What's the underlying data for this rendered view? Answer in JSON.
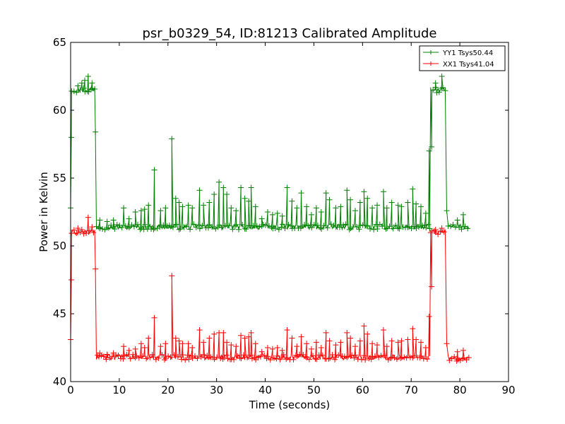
{
  "chart_data": {
    "type": "line",
    "title": "psr_b0329_54, ID:81213 Calibrated Amplitude",
    "xlabel": "Time (seconds)",
    "ylabel": "Power in Kelvin",
    "xlim": [
      0,
      90
    ],
    "ylim": [
      40,
      65
    ],
    "xticks": [
      "0",
      "10",
      "20",
      "30",
      "40",
      "50",
      "60",
      "70",
      "80",
      "90"
    ],
    "yticks": [
      "40",
      "45",
      "50",
      "55",
      "60",
      "65"
    ],
    "grid": false,
    "legend_position": "top-right",
    "series": [
      {
        "name": "YY1 Tsys50.44",
        "color": "#008000",
        "marker": "plus",
        "baseline_segments": [
          {
            "x_start": 0.2,
            "x_end": 5.0,
            "level": 61.5
          },
          {
            "x_start": 5.3,
            "x_end": 73.8,
            "level": 51.4
          },
          {
            "x_start": 74.0,
            "x_end": 77.2,
            "level": 61.5
          },
          {
            "x_start": 77.6,
            "x_end": 82.0,
            "level": 51.4
          }
        ],
        "transitions": [
          {
            "x": 0.0,
            "y": 52.8
          },
          {
            "x": 0.15,
            "y": 58.0
          },
          {
            "x": 5.1,
            "y": 58.4
          },
          {
            "x": 73.7,
            "y": 57.0
          },
          {
            "x": 74.2,
            "y": 57.3
          },
          {
            "x": 77.3,
            "y": 52.6
          }
        ],
        "spikes": [
          {
            "x": 1.5,
            "y": 61.8
          },
          {
            "x": 2.3,
            "y": 62.0
          },
          {
            "x": 2.9,
            "y": 62.2
          },
          {
            "x": 3.6,
            "y": 62.5
          },
          {
            "x": 4.4,
            "y": 62.0
          },
          {
            "x": 6.0,
            "y": 51.9
          },
          {
            "x": 7.5,
            "y": 51.8
          },
          {
            "x": 8.8,
            "y": 51.9
          },
          {
            "x": 10.9,
            "y": 52.8
          },
          {
            "x": 12.0,
            "y": 52.0
          },
          {
            "x": 13.3,
            "y": 52.5
          },
          {
            "x": 14.5,
            "y": 52.6
          },
          {
            "x": 15.2,
            "y": 52.7
          },
          {
            "x": 16.0,
            "y": 53.0
          },
          {
            "x": 17.2,
            "y": 55.6
          },
          {
            "x": 18.5,
            "y": 52.6
          },
          {
            "x": 19.5,
            "y": 52.8
          },
          {
            "x": 20.8,
            "y": 57.9
          },
          {
            "x": 21.6,
            "y": 53.5
          },
          {
            "x": 22.3,
            "y": 53.2
          },
          {
            "x": 23.0,
            "y": 52.9
          },
          {
            "x": 24.2,
            "y": 53.0
          },
          {
            "x": 25.0,
            "y": 52.8
          },
          {
            "x": 26.5,
            "y": 54.1
          },
          {
            "x": 27.3,
            "y": 53.0
          },
          {
            "x": 28.5,
            "y": 53.2
          },
          {
            "x": 29.5,
            "y": 53.8
          },
          {
            "x": 30.5,
            "y": 54.7
          },
          {
            "x": 31.4,
            "y": 54.3
          },
          {
            "x": 32.1,
            "y": 53.8
          },
          {
            "x": 33.0,
            "y": 52.8
          },
          {
            "x": 34.0,
            "y": 52.6
          },
          {
            "x": 35.0,
            "y": 54.3
          },
          {
            "x": 35.8,
            "y": 53.5
          },
          {
            "x": 36.6,
            "y": 53.3
          },
          {
            "x": 37.1,
            "y": 54.3
          },
          {
            "x": 38.0,
            "y": 52.9
          },
          {
            "x": 39.3,
            "y": 52.0
          },
          {
            "x": 40.5,
            "y": 52.5
          },
          {
            "x": 41.5,
            "y": 52.3
          },
          {
            "x": 42.5,
            "y": 52.4
          },
          {
            "x": 43.5,
            "y": 52.2
          },
          {
            "x": 44.5,
            "y": 54.3
          },
          {
            "x": 45.5,
            "y": 53.3
          },
          {
            "x": 46.5,
            "y": 52.8
          },
          {
            "x": 47.4,
            "y": 53.9
          },
          {
            "x": 48.5,
            "y": 52.9
          },
          {
            "x": 49.5,
            "y": 52.3
          },
          {
            "x": 50.5,
            "y": 52.8
          },
          {
            "x": 51.5,
            "y": 52.5
          },
          {
            "x": 52.5,
            "y": 53.9
          },
          {
            "x": 53.2,
            "y": 53.4
          },
          {
            "x": 54.5,
            "y": 52.8
          },
          {
            "x": 55.5,
            "y": 52.9
          },
          {
            "x": 56.8,
            "y": 54.1
          },
          {
            "x": 57.5,
            "y": 53.4
          },
          {
            "x": 58.5,
            "y": 52.6
          },
          {
            "x": 59.5,
            "y": 53.2
          },
          {
            "x": 60.3,
            "y": 54.0
          },
          {
            "x": 61.0,
            "y": 53.5
          },
          {
            "x": 62.0,
            "y": 52.8
          },
          {
            "x": 63.0,
            "y": 53.0
          },
          {
            "x": 64.3,
            "y": 54.0
          },
          {
            "x": 65.0,
            "y": 52.8
          },
          {
            "x": 66.0,
            "y": 53.2
          },
          {
            "x": 67.3,
            "y": 53.0
          },
          {
            "x": 68.0,
            "y": 52.9
          },
          {
            "x": 69.3,
            "y": 53.2
          },
          {
            "x": 70.3,
            "y": 54.2
          },
          {
            "x": 71.0,
            "y": 53.1
          },
          {
            "x": 72.0,
            "y": 52.9
          },
          {
            "x": 73.0,
            "y": 52.4
          },
          {
            "x": 75.0,
            "y": 62.0
          },
          {
            "x": 76.3,
            "y": 62.5
          },
          {
            "x": 79.5,
            "y": 51.9
          },
          {
            "x": 80.7,
            "y": 52.3
          }
        ]
      },
      {
        "name": "XX1 Tsys41.04",
        "color": "#ff0000",
        "marker": "plus",
        "baseline_segments": [
          {
            "x_start": 0.2,
            "x_end": 5.0,
            "level": 51.0
          },
          {
            "x_start": 5.3,
            "x_end": 73.8,
            "level": 41.8
          },
          {
            "x_start": 74.0,
            "x_end": 77.2,
            "level": 51.0
          },
          {
            "x_start": 77.6,
            "x_end": 82.0,
            "level": 41.7
          }
        ],
        "transitions": [
          {
            "x": 0.0,
            "y": 43.1
          },
          {
            "x": 0.15,
            "y": 47.5
          },
          {
            "x": 5.1,
            "y": 48.3
          },
          {
            "x": 73.7,
            "y": 44.8
          },
          {
            "x": 74.2,
            "y": 47.0
          },
          {
            "x": 77.3,
            "y": 42.8
          }
        ],
        "spikes": [
          {
            "x": 1.5,
            "y": 51.3
          },
          {
            "x": 2.3,
            "y": 51.2
          },
          {
            "x": 3.6,
            "y": 52.1
          },
          {
            "x": 4.4,
            "y": 51.4
          },
          {
            "x": 6.0,
            "y": 42.1
          },
          {
            "x": 7.5,
            "y": 42.0
          },
          {
            "x": 8.8,
            "y": 42.1
          },
          {
            "x": 10.9,
            "y": 42.6
          },
          {
            "x": 12.0,
            "y": 42.3
          },
          {
            "x": 13.3,
            "y": 42.4
          },
          {
            "x": 14.5,
            "y": 42.8
          },
          {
            "x": 15.2,
            "y": 42.5
          },
          {
            "x": 16.0,
            "y": 43.2
          },
          {
            "x": 17.2,
            "y": 44.7
          },
          {
            "x": 18.5,
            "y": 42.6
          },
          {
            "x": 19.5,
            "y": 42.8
          },
          {
            "x": 20.8,
            "y": 47.8
          },
          {
            "x": 21.6,
            "y": 43.2
          },
          {
            "x": 22.3,
            "y": 43.0
          },
          {
            "x": 23.0,
            "y": 42.8
          },
          {
            "x": 24.2,
            "y": 42.8
          },
          {
            "x": 25.0,
            "y": 42.5
          },
          {
            "x": 26.5,
            "y": 43.8
          },
          {
            "x": 27.3,
            "y": 42.9
          },
          {
            "x": 28.5,
            "y": 43.2
          },
          {
            "x": 29.5,
            "y": 43.5
          },
          {
            "x": 30.5,
            "y": 43.6
          },
          {
            "x": 31.4,
            "y": 43.6
          },
          {
            "x": 32.1,
            "y": 42.9
          },
          {
            "x": 33.0,
            "y": 42.7
          },
          {
            "x": 34.0,
            "y": 42.6
          },
          {
            "x": 35.0,
            "y": 43.4
          },
          {
            "x": 35.8,
            "y": 43.2
          },
          {
            "x": 36.6,
            "y": 43.3
          },
          {
            "x": 37.1,
            "y": 43.6
          },
          {
            "x": 38.0,
            "y": 42.8
          },
          {
            "x": 39.3,
            "y": 42.2
          },
          {
            "x": 40.5,
            "y": 42.5
          },
          {
            "x": 41.5,
            "y": 42.4
          },
          {
            "x": 42.5,
            "y": 42.5
          },
          {
            "x": 43.5,
            "y": 42.3
          },
          {
            "x": 44.5,
            "y": 43.8
          },
          {
            "x": 45.5,
            "y": 43.2
          },
          {
            "x": 46.5,
            "y": 42.6
          },
          {
            "x": 47.4,
            "y": 43.3
          },
          {
            "x": 48.5,
            "y": 42.8
          },
          {
            "x": 49.5,
            "y": 42.4
          },
          {
            "x": 50.5,
            "y": 42.9
          },
          {
            "x": 51.5,
            "y": 42.5
          },
          {
            "x": 52.5,
            "y": 43.6
          },
          {
            "x": 53.2,
            "y": 43.0
          },
          {
            "x": 54.5,
            "y": 42.7
          },
          {
            "x": 55.5,
            "y": 42.9
          },
          {
            "x": 56.8,
            "y": 43.6
          },
          {
            "x": 57.5,
            "y": 43.2
          },
          {
            "x": 58.5,
            "y": 42.6
          },
          {
            "x": 59.5,
            "y": 43.0
          },
          {
            "x": 60.3,
            "y": 44.1
          },
          {
            "x": 61.0,
            "y": 43.5
          },
          {
            "x": 62.0,
            "y": 42.8
          },
          {
            "x": 63.0,
            "y": 42.7
          },
          {
            "x": 64.3,
            "y": 43.8
          },
          {
            "x": 65.0,
            "y": 42.6
          },
          {
            "x": 66.0,
            "y": 43.0
          },
          {
            "x": 67.3,
            "y": 42.9
          },
          {
            "x": 68.0,
            "y": 43.0
          },
          {
            "x": 69.3,
            "y": 43.1
          },
          {
            "x": 70.3,
            "y": 43.9
          },
          {
            "x": 71.0,
            "y": 43.1
          },
          {
            "x": 72.0,
            "y": 42.9
          },
          {
            "x": 73.0,
            "y": 42.5
          },
          {
            "x": 75.0,
            "y": 51.2
          },
          {
            "x": 76.3,
            "y": 51.3
          },
          {
            "x": 79.5,
            "y": 42.2
          },
          {
            "x": 80.7,
            "y": 42.3
          }
        ]
      }
    ]
  }
}
